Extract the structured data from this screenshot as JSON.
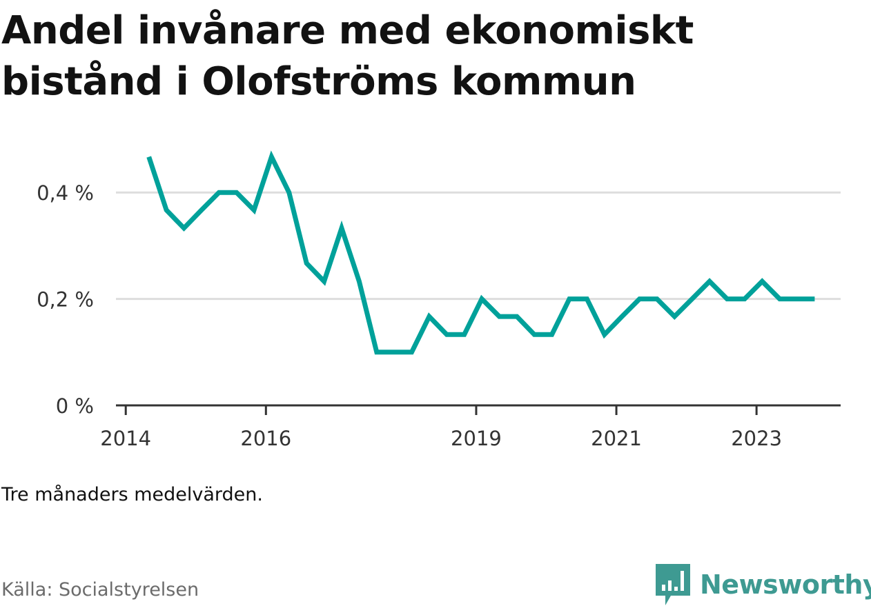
{
  "title": "Andel invånare med ekonomiskt bistånd i Olofströms kommun",
  "note": "Tre månaders medelvärden.",
  "source": "Källa: Socialstyrelsen",
  "brand": {
    "name": "Newsworthy",
    "icon": "newsworthy-logo-icon",
    "color": "#3e9a92"
  },
  "colors": {
    "line": "#00a19a",
    "grid": "#dddddd",
    "axis": "#333333"
  },
  "chart_data": {
    "type": "line",
    "title": "Andel invånare med ekonomiskt bistånd i Olofströms kommun",
    "xlabel": "",
    "ylabel": "",
    "ylim": [
      0,
      0.5
    ],
    "yticks": [
      {
        "value": 0,
        "label": "0 %"
      },
      {
        "value": 0.2,
        "label": "0,2 %"
      },
      {
        "value": 0.4,
        "label": "0,4 %"
      }
    ],
    "xticks": [
      {
        "value": 2014,
        "label": "2014"
      },
      {
        "value": 2016,
        "label": "2016"
      },
      {
        "value": 2019,
        "label": "2019"
      },
      {
        "value": 2021,
        "label": "2021"
      },
      {
        "value": 2023,
        "label": "2023"
      }
    ],
    "xlim": [
      2013.86,
      2024.2
    ],
    "grid": true,
    "series": [
      {
        "x": [
          2014.33,
          2014.58,
          2014.83,
          2015.08,
          2015.33,
          2015.58,
          2015.83,
          2016.08,
          2016.33,
          2016.58,
          2016.83,
          2017.08,
          2017.33,
          2017.58,
          2017.83,
          2018.08,
          2018.33,
          2018.58,
          2018.83,
          2019.08,
          2019.33,
          2019.58,
          2019.83,
          2020.08,
          2020.33,
          2020.58,
          2020.83,
          2021.08,
          2021.33,
          2021.58,
          2021.83,
          2022.08,
          2022.33,
          2022.58,
          2022.83,
          2023.08,
          2023.33,
          2023.58,
          2023.83
        ],
        "values": [
          0.467,
          0.367,
          0.333,
          0.367,
          0.4,
          0.4,
          0.367,
          0.467,
          0.4,
          0.267,
          0.233,
          0.333,
          0.233,
          0.1,
          0.1,
          0.1,
          0.167,
          0.133,
          0.133,
          0.2,
          0.167,
          0.167,
          0.133,
          0.133,
          0.2,
          0.2,
          0.133,
          0.167,
          0.2,
          0.2,
          0.167,
          0.2,
          0.233,
          0.2,
          0.2,
          0.233,
          0.2,
          0.2,
          0.2
        ]
      }
    ]
  }
}
